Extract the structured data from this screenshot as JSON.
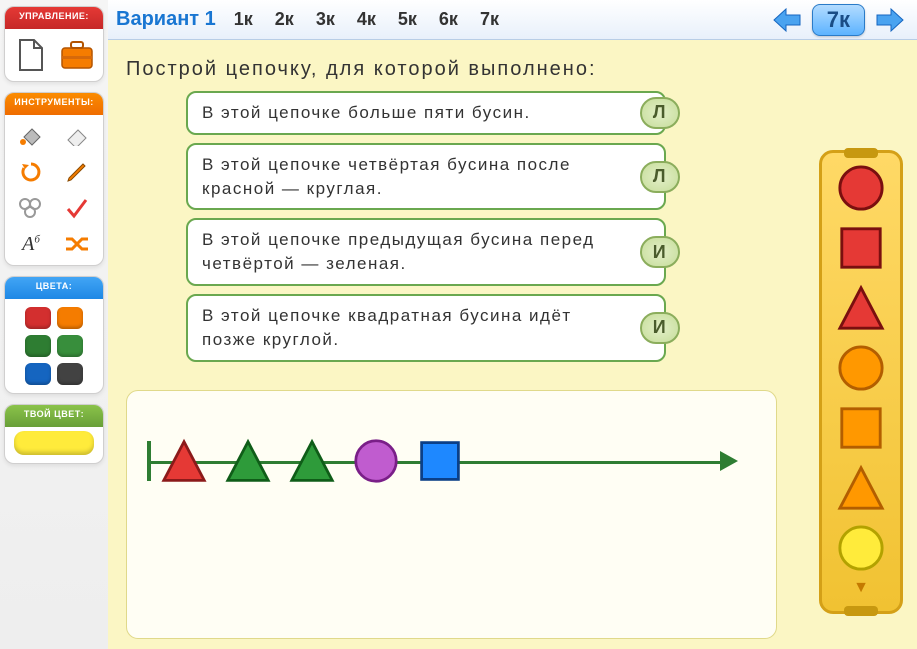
{
  "topbar": {
    "variant_label": "Вариант 1",
    "k_tabs": [
      "1к",
      "2к",
      "3к",
      "4к",
      "5к",
      "6к",
      "7к"
    ],
    "current": "7к"
  },
  "sidebar": {
    "management_label": "УПРАВЛЕНИЕ:",
    "tools_label": "ИНСТРУМЕНТЫ:",
    "colors_label": "ЦВЕТА:",
    "your_color_label": "ТВОЙ ЦВЕТ:",
    "your_color_value": "#ffeb3b",
    "management_icons": [
      "new-file",
      "briefcase"
    ],
    "tool_icons": [
      "fill-bucket",
      "eraser",
      "reload",
      "pencil",
      "stamp",
      "checkmark",
      "text-style",
      "shuffle"
    ],
    "swatches": [
      "#d32f2f",
      "#f57c00",
      "#2e7d32",
      "#388e3c",
      "#1565c0",
      "#424242"
    ]
  },
  "canvas": {
    "prompt": "Построй цепочку, для которой выполнено:",
    "conditions": [
      {
        "text": "В этой цепочке больше пяти бусин.",
        "badge": "Л"
      },
      {
        "text": "В этой цепочке четвёртая бусина после красной — круглая.",
        "badge": "Л"
      },
      {
        "text": "В этой цепочке предыдущая бусина перед четвёртой — зеленая.",
        "badge": "И"
      },
      {
        "text": "В этой цепочке квадратная бусина идёт позже круглой.",
        "badge": "И"
      }
    ],
    "condition_border": "#6aa84f",
    "badge_bg": "#c6dd9a",
    "badge_border": "#8bad5c"
  },
  "chain": {
    "line_color": "#2e7d32",
    "beads": [
      {
        "shape": "triangle",
        "fill": "#e53935",
        "stroke": "#8b1a1a"
      },
      {
        "shape": "triangle",
        "fill": "#2e9b3a",
        "stroke": "#0f5d18"
      },
      {
        "shape": "triangle",
        "fill": "#2e9b3a",
        "stroke": "#0f5d18"
      },
      {
        "shape": "circle",
        "fill": "#c05ccf",
        "stroke": "#7a1f88"
      },
      {
        "shape": "square",
        "fill": "#1e88ff",
        "stroke": "#0b3f87"
      }
    ]
  },
  "palette": {
    "bg": "#ffd966",
    "border": "#d4a017",
    "items": [
      {
        "shape": "circle",
        "fill": "#e53935",
        "stroke": "#7a0f0f"
      },
      {
        "shape": "square",
        "fill": "#e53935",
        "stroke": "#7a0f0f"
      },
      {
        "shape": "triangle",
        "fill": "#e53935",
        "stroke": "#7a0f0f"
      },
      {
        "shape": "circle",
        "fill": "#ff9800",
        "stroke": "#b35e00"
      },
      {
        "shape": "square",
        "fill": "#ff9800",
        "stroke": "#b35e00"
      },
      {
        "shape": "triangle",
        "fill": "#ff9800",
        "stroke": "#b35e00"
      },
      {
        "shape": "circle",
        "fill": "#ffeb3b",
        "stroke": "#b3a200"
      }
    ]
  }
}
